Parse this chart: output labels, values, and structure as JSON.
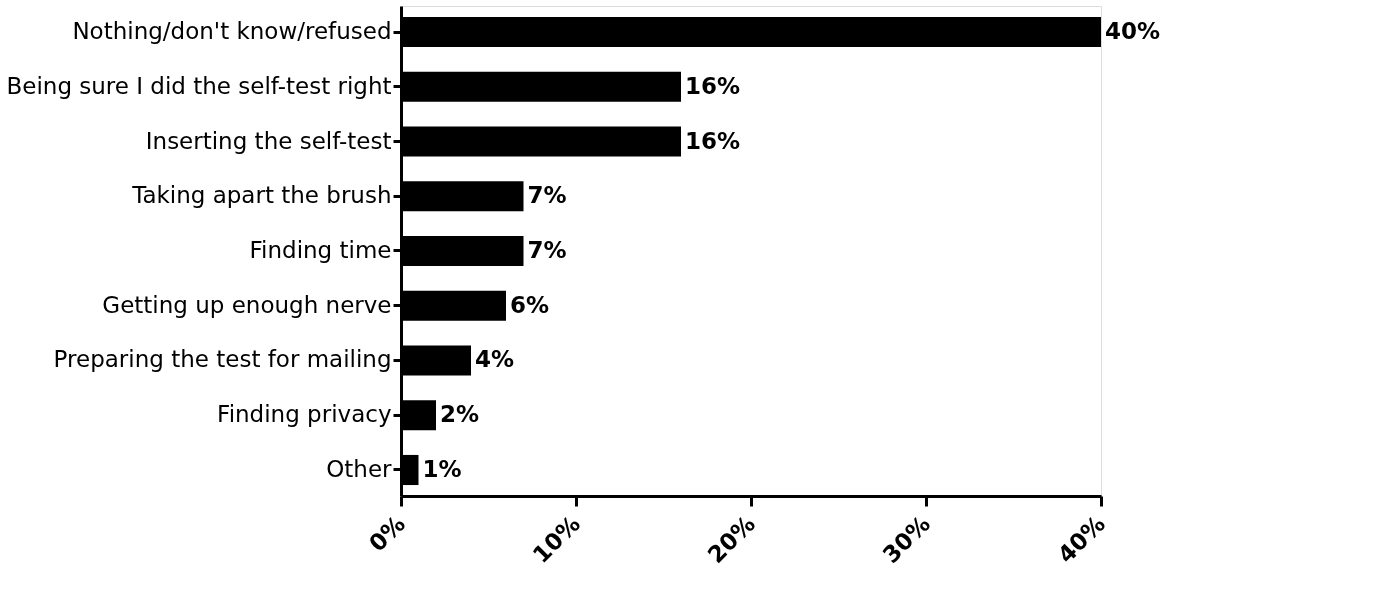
{
  "chart_data": {
    "type": "bar",
    "orientation": "horizontal",
    "categories": [
      "Nothing/don't know/refused",
      "Being sure I did the self-test right",
      "Inserting the self-test",
      "Taking apart the brush",
      "Finding time",
      "Getting up enough nerve",
      "Preparing the test for mailing",
      "Finding privacy",
      "Other"
    ],
    "values": [
      40,
      16,
      16,
      7,
      7,
      6,
      4,
      2,
      1
    ],
    "value_labels": [
      "40%",
      "16%",
      "16%",
      "7%",
      "7%",
      "6%",
      "4%",
      "2%",
      "1%"
    ],
    "color": "#000000",
    "xlim": [
      0,
      40
    ],
    "xticks": [
      {
        "value": 0,
        "label": "0%"
      },
      {
        "value": 10,
        "label": "10%"
      },
      {
        "value": 20,
        "label": "20%"
      },
      {
        "value": 30,
        "label": "30%"
      },
      {
        "value": 40,
        "label": "40%"
      }
    ],
    "grid": false
  }
}
